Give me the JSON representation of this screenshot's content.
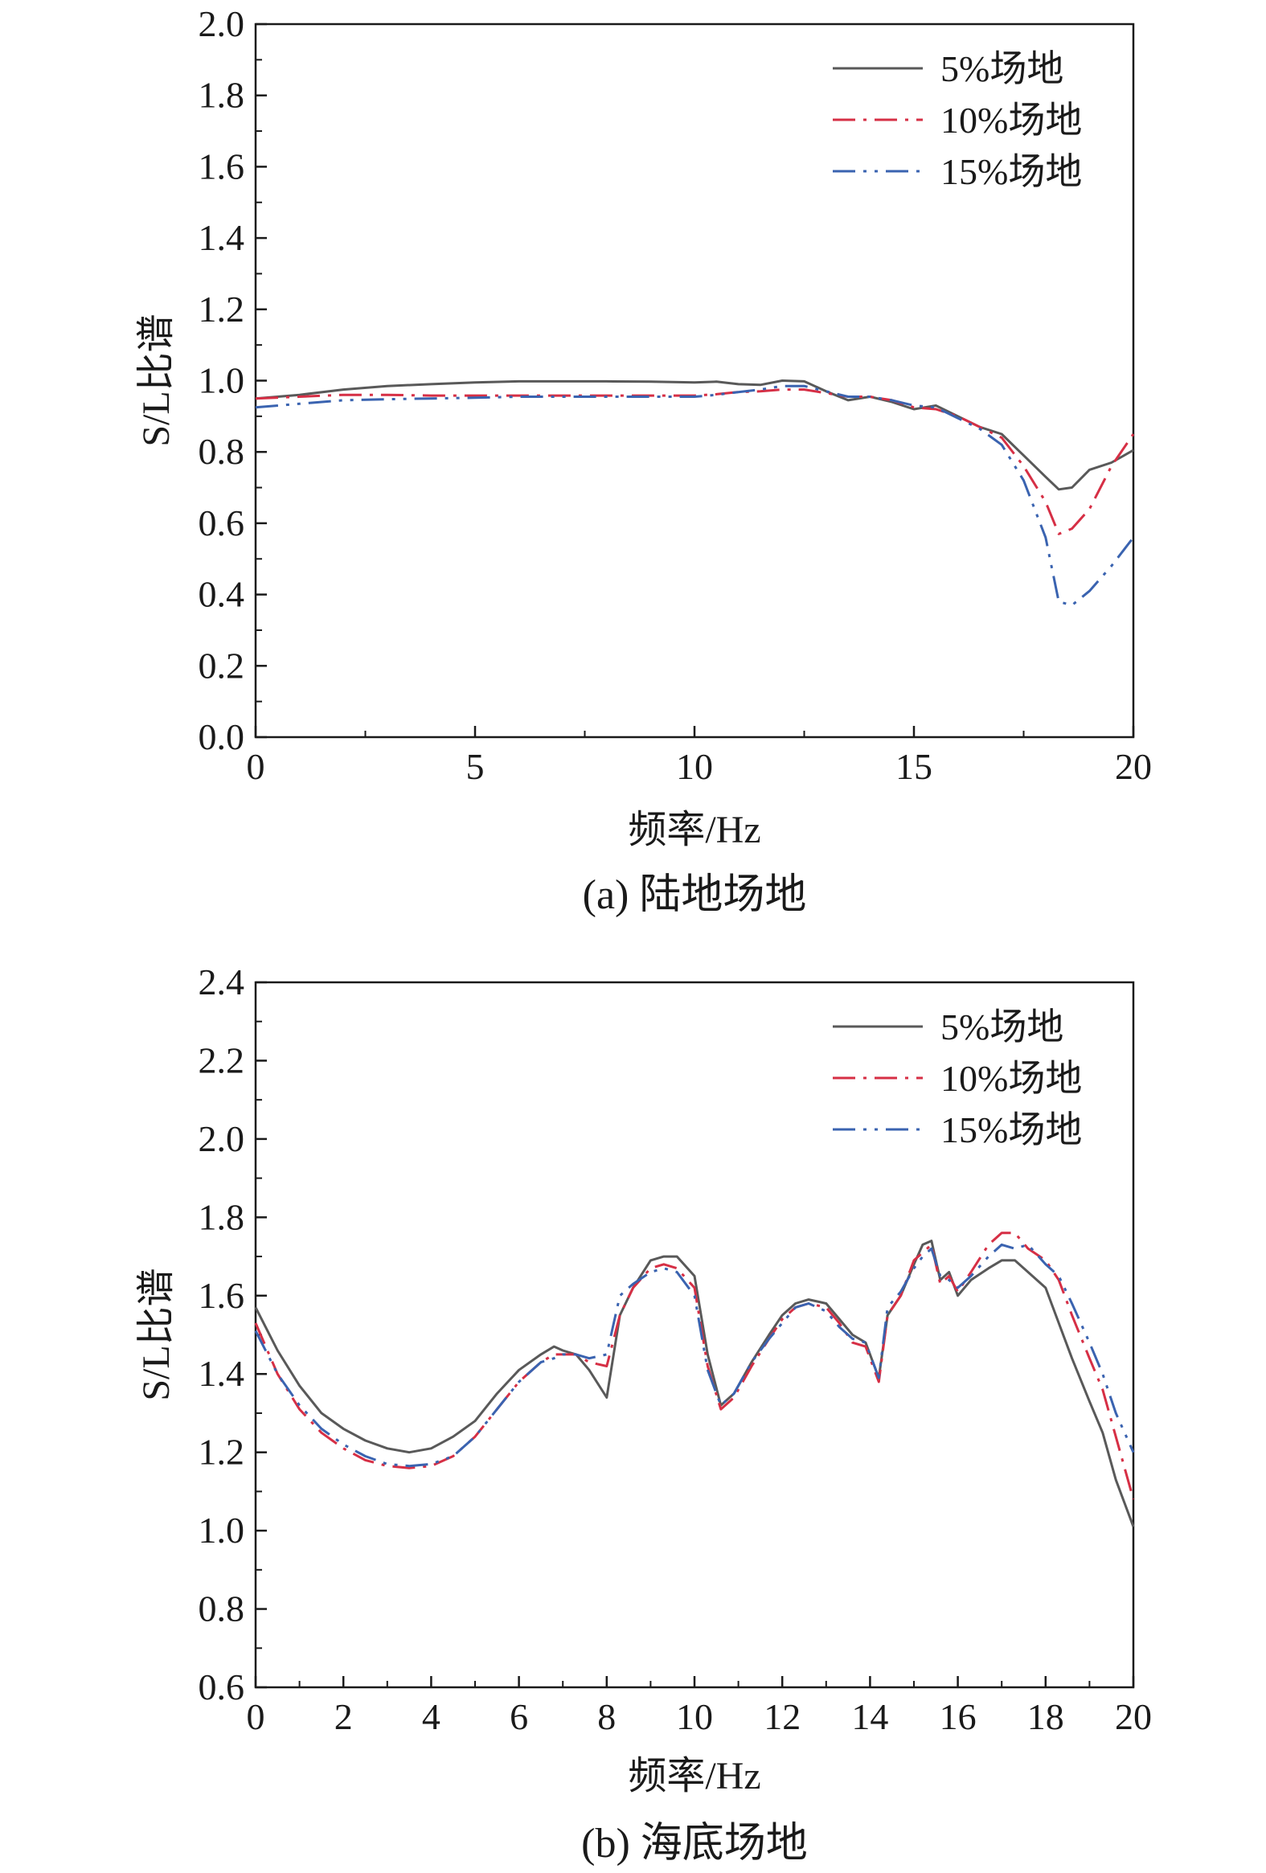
{
  "chart_data": [
    {
      "type": "line",
      "caption": "(a) 陆地场地",
      "xlabel": "频率/Hz",
      "ylabel": "S/L比谱",
      "xlim": [
        0,
        20
      ],
      "ylim": [
        0.0,
        2.0
      ],
      "xticks": [
        0,
        5,
        10,
        15,
        20
      ],
      "xtick_labels": [
        "0",
        "5",
        "10",
        "15",
        "20"
      ],
      "yticks": [
        0.0,
        0.2,
        0.4,
        0.6,
        0.8,
        1.0,
        1.2,
        1.4,
        1.6,
        1.8,
        2.0
      ],
      "ytick_labels": [
        "0.0",
        "0.2",
        "0.4",
        "0.6",
        "0.8",
        "1.0",
        "1.2",
        "1.4",
        "1.6",
        "1.8",
        "2.0"
      ],
      "grid": false,
      "legend_position": "top-right",
      "series": [
        {
          "name": "5%场地",
          "color": "#595959",
          "dash": "solid",
          "x": [
            0,
            1,
            2,
            3,
            4,
            5,
            6,
            7,
            8,
            9,
            10,
            10.5,
            11,
            11.5,
            12,
            12.5,
            13,
            13.5,
            14,
            14.5,
            15,
            15.5,
            16,
            16.5,
            17,
            17.5,
            18,
            18.3,
            18.6,
            19,
            19.5,
            20
          ],
          "y": [
            0.95,
            0.96,
            0.975,
            0.985,
            0.99,
            0.995,
            0.998,
            0.998,
            0.998,
            0.997,
            0.995,
            0.997,
            0.99,
            0.988,
            1.0,
            0.998,
            0.97,
            0.945,
            0.955,
            0.94,
            0.92,
            0.93,
            0.9,
            0.87,
            0.85,
            0.79,
            0.73,
            0.695,
            0.7,
            0.75,
            0.77,
            0.805
          ]
        },
        {
          "name": "10%场地",
          "color": "#d62f45",
          "dash": "dashdot",
          "x": [
            0,
            1,
            2,
            3,
            4,
            5,
            6,
            7,
            8,
            9,
            10,
            10.5,
            11,
            11.5,
            12,
            12.5,
            13,
            13.5,
            14,
            14.5,
            15,
            15.5,
            16,
            16.5,
            17,
            17.5,
            18,
            18.3,
            18.6,
            19,
            19.5,
            20
          ],
          "y": [
            0.95,
            0.955,
            0.96,
            0.96,
            0.958,
            0.958,
            0.958,
            0.958,
            0.958,
            0.958,
            0.958,
            0.962,
            0.968,
            0.97,
            0.975,
            0.975,
            0.965,
            0.955,
            0.955,
            0.945,
            0.925,
            0.92,
            0.9,
            0.87,
            0.84,
            0.76,
            0.66,
            0.57,
            0.585,
            0.64,
            0.76,
            0.85
          ]
        },
        {
          "name": "15%场地",
          "color": "#3a63b0",
          "dash": "dashdotdot",
          "x": [
            0,
            1,
            2,
            3,
            4,
            5,
            6,
            7,
            8,
            9,
            10,
            10.5,
            11,
            11.5,
            12,
            12.5,
            13,
            13.5,
            14,
            14.5,
            15,
            15.5,
            16,
            16.5,
            17,
            17.5,
            18,
            18.3,
            18.6,
            19,
            19.5,
            20
          ],
          "y": [
            0.925,
            0.935,
            0.945,
            0.948,
            0.95,
            0.952,
            0.955,
            0.955,
            0.955,
            0.955,
            0.955,
            0.96,
            0.968,
            0.975,
            0.985,
            0.985,
            0.97,
            0.955,
            0.955,
            0.945,
            0.93,
            0.925,
            0.895,
            0.865,
            0.82,
            0.72,
            0.56,
            0.38,
            0.37,
            0.41,
            0.48,
            0.56
          ]
        }
      ]
    },
    {
      "type": "line",
      "caption": "(b) 海底场地",
      "xlabel": "频率/Hz",
      "ylabel": "S/L比谱",
      "xlim": [
        0,
        20
      ],
      "ylim": [
        0.6,
        2.4
      ],
      "xticks": [
        0,
        2,
        4,
        6,
        8,
        10,
        12,
        14,
        16,
        18,
        20
      ],
      "xtick_labels": [
        "0",
        "2",
        "4",
        "6",
        "8",
        "10",
        "12",
        "14",
        "16",
        "18",
        "20"
      ],
      "yticks": [
        0.6,
        0.8,
        1.0,
        1.2,
        1.4,
        1.6,
        1.8,
        2.0,
        2.2,
        2.4
      ],
      "ytick_labels": [
        "0.6",
        "0.8",
        "1.0",
        "1.2",
        "1.4",
        "1.6",
        "1.8",
        "2.0",
        "2.2",
        "2.4"
      ],
      "grid": false,
      "legend_position": "top-right",
      "series": [
        {
          "name": "5%场地",
          "color": "#595959",
          "dash": "solid",
          "x": [
            0,
            0.5,
            1,
            1.5,
            2,
            2.5,
            3,
            3.5,
            4,
            4.5,
            5,
            5.5,
            6,
            6.5,
            6.8,
            7,
            7.3,
            7.6,
            8,
            8.3,
            8.6,
            9,
            9.3,
            9.6,
            10,
            10.3,
            10.6,
            10.9,
            11.3,
            11.7,
            12,
            12.3,
            12.6,
            13,
            13.3,
            13.6,
            13.9,
            14.2,
            14.4,
            14.7,
            15,
            15.2,
            15.4,
            15.6,
            15.8,
            16,
            16.3,
            16.7,
            17,
            17.3,
            17.6,
            18,
            18.3,
            18.6,
            19,
            19.3,
            19.6,
            20
          ],
          "y": [
            1.57,
            1.46,
            1.37,
            1.3,
            1.26,
            1.23,
            1.21,
            1.2,
            1.21,
            1.24,
            1.28,
            1.35,
            1.41,
            1.45,
            1.47,
            1.46,
            1.45,
            1.41,
            1.34,
            1.55,
            1.62,
            1.69,
            1.7,
            1.7,
            1.65,
            1.45,
            1.32,
            1.35,
            1.43,
            1.5,
            1.55,
            1.58,
            1.59,
            1.58,
            1.54,
            1.5,
            1.48,
            1.39,
            1.55,
            1.6,
            1.68,
            1.73,
            1.74,
            1.64,
            1.66,
            1.6,
            1.64,
            1.67,
            1.69,
            1.69,
            1.66,
            1.62,
            1.53,
            1.44,
            1.33,
            1.25,
            1.13,
            1.01
          ]
        },
        {
          "name": "10%场地",
          "color": "#d62f45",
          "dash": "dashdot",
          "x": [
            0,
            0.5,
            1,
            1.5,
            2,
            2.5,
            3,
            3.5,
            4,
            4.5,
            5,
            5.5,
            6,
            6.5,
            6.8,
            7,
            7.3,
            7.6,
            8,
            8.3,
            8.6,
            9,
            9.3,
            9.6,
            10,
            10.3,
            10.6,
            10.9,
            11.3,
            11.7,
            12,
            12.3,
            12.6,
            13,
            13.3,
            13.6,
            13.9,
            14.2,
            14.4,
            14.7,
            15,
            15.2,
            15.4,
            15.6,
            15.8,
            16,
            16.3,
            16.7,
            17,
            17.3,
            17.6,
            18,
            18.3,
            18.6,
            19,
            19.3,
            19.6,
            20
          ],
          "y": [
            1.53,
            1.4,
            1.31,
            1.25,
            1.21,
            1.18,
            1.165,
            1.16,
            1.165,
            1.19,
            1.24,
            1.31,
            1.38,
            1.43,
            1.45,
            1.45,
            1.45,
            1.43,
            1.42,
            1.55,
            1.62,
            1.67,
            1.68,
            1.67,
            1.62,
            1.42,
            1.31,
            1.34,
            1.42,
            1.49,
            1.54,
            1.57,
            1.58,
            1.57,
            1.53,
            1.48,
            1.47,
            1.38,
            1.55,
            1.6,
            1.69,
            1.71,
            1.73,
            1.63,
            1.65,
            1.61,
            1.66,
            1.73,
            1.76,
            1.76,
            1.72,
            1.69,
            1.64,
            1.55,
            1.44,
            1.36,
            1.24,
            1.08
          ]
        },
        {
          "name": "15%场地",
          "color": "#3a63b0",
          "dash": "dashdotdot",
          "x": [
            0,
            0.5,
            1,
            1.5,
            2,
            2.5,
            3,
            3.5,
            4,
            4.5,
            5,
            5.5,
            6,
            6.5,
            6.8,
            7,
            7.3,
            7.6,
            8,
            8.3,
            8.6,
            9,
            9.3,
            9.6,
            10,
            10.3,
            10.6,
            10.9,
            11.3,
            11.7,
            12,
            12.3,
            12.6,
            13,
            13.3,
            13.6,
            13.9,
            14.2,
            14.4,
            14.7,
            15,
            15.2,
            15.4,
            15.6,
            15.8,
            16,
            16.3,
            16.7,
            17,
            17.3,
            17.6,
            18,
            18.3,
            18.6,
            19,
            19.3,
            19.6,
            20
          ],
          "y": [
            1.51,
            1.4,
            1.32,
            1.26,
            1.22,
            1.19,
            1.17,
            1.165,
            1.17,
            1.19,
            1.24,
            1.31,
            1.38,
            1.43,
            1.44,
            1.45,
            1.45,
            1.44,
            1.45,
            1.6,
            1.63,
            1.66,
            1.67,
            1.66,
            1.6,
            1.41,
            1.32,
            1.35,
            1.43,
            1.49,
            1.53,
            1.57,
            1.58,
            1.56,
            1.52,
            1.49,
            1.48,
            1.39,
            1.57,
            1.61,
            1.67,
            1.7,
            1.72,
            1.65,
            1.64,
            1.62,
            1.65,
            1.7,
            1.73,
            1.72,
            1.73,
            1.68,
            1.65,
            1.58,
            1.48,
            1.4,
            1.3,
            1.2
          ]
        }
      ]
    }
  ]
}
